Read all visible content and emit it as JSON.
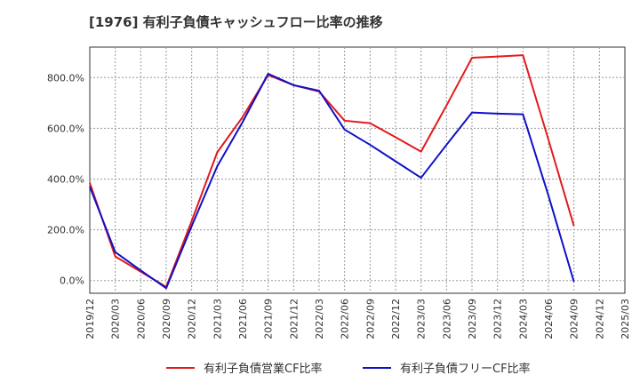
{
  "page": {
    "title": "[1976]  有利子負債キャッシュフロー比率の推移"
  },
  "chart_data": {
    "type": "line",
    "title": "[1976]  有利子負債キャッシュフロー比率の推移",
    "xlabel": "",
    "ylabel": "",
    "ylim": [
      -50,
      920
    ],
    "yticks": [
      0,
      200,
      400,
      600,
      800
    ],
    "ytick_labels": [
      "0.0%",
      "200.0%",
      "400.0%",
      "600.0%",
      "800.0%"
    ],
    "x": [
      "2019/12",
      "2020/03",
      "2020/06",
      "2020/09",
      "2020/12",
      "2021/03",
      "2021/06",
      "2021/09",
      "2021/12",
      "2022/03",
      "2022/06",
      "2022/09",
      "2022/12",
      "2023/03",
      "2023/06",
      "2023/09",
      "2023/12",
      "2024/03",
      "2024/06",
      "2024/09",
      "2024/12",
      "2025/03"
    ],
    "grid": true,
    "legend_position": "bottom",
    "series": [
      {
        "name": "有利子負債営業CF比率",
        "color": "#e31a1c",
        "values": [
          385,
          95,
          35,
          -25,
          235,
          505,
          645,
          810,
          770,
          745,
          630,
          620,
          565,
          508,
          690,
          878,
          883,
          888,
          555,
          215,
          null,
          null
        ]
      },
      {
        "name": "有利子負債フリーCF比率",
        "color": "#1010c8",
        "values": [
          370,
          112,
          40,
          -30,
          215,
          450,
          625,
          815,
          770,
          748,
          595,
          535,
          470,
          405,
          535,
          662,
          658,
          655,
          335,
          -5,
          null,
          null
        ]
      }
    ]
  }
}
